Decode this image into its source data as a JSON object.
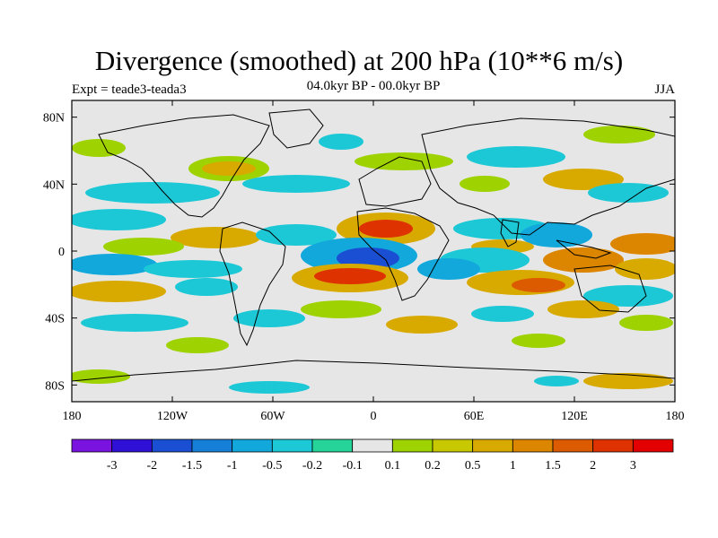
{
  "title": "Divergence (smoothed) at 200 hPa (10**6 m/s)",
  "subtitle_left": "Expt = teade3-teada3",
  "subtitle_center": "04.0kyr BP - 00.0kyr BP",
  "subtitle_right": "JJA",
  "map": {
    "lon_labels": [
      "180",
      "120W",
      "60W",
      "0",
      "60E",
      "120E",
      "180"
    ],
    "lat_labels": [
      "80N",
      "40N",
      "0",
      "40S",
      "80S"
    ],
    "background_color": "#e6e6e6"
  },
  "colorbar": {
    "labels": [
      "-3",
      "-2",
      "-1.5",
      "-1",
      "-0.5",
      "-0.2",
      "-0.1",
      "0.1",
      "0.2",
      "0.5",
      "1",
      "1.5",
      "2",
      "3"
    ],
    "colors": [
      "#7a12e0",
      "#2e10d6",
      "#1a4fd4",
      "#1680d8",
      "#12a8dc",
      "#1cc8d6",
      "#26d49a",
      "#e6e6e6",
      "#9ed200",
      "#c8c800",
      "#d8aa00",
      "#dc8600",
      "#dc5a00",
      "#de3200",
      "#e20000"
    ]
  }
}
